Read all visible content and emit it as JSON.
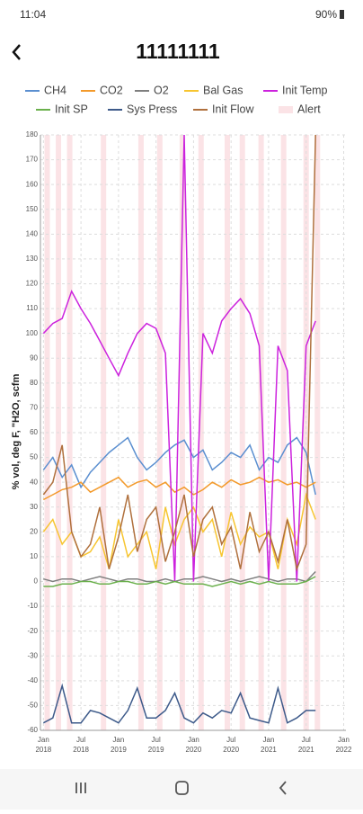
{
  "status": {
    "time": "11:04",
    "battery": "90%"
  },
  "header": {
    "title": "11111111"
  },
  "chart_data": {
    "type": "line",
    "y_label": "% vol, deg F, \"H2O, scfm",
    "x": [
      2018.0,
      2018.125,
      2018.25,
      2018.375,
      2018.5,
      2018.625,
      2018.75,
      2018.875,
      2019.0,
      2019.125,
      2019.25,
      2019.375,
      2019.5,
      2019.625,
      2019.75,
      2019.875,
      2020.0,
      2020.125,
      2020.25,
      2020.375,
      2020.5,
      2020.625,
      2020.75,
      2020.875,
      2021.0,
      2021.125,
      2021.25,
      2021.375,
      2021.5,
      2021.625
    ],
    "series": [
      {
        "name": "CH4",
        "color": "#5b8fd0",
        "values": [
          45,
          50,
          42,
          47,
          38,
          44,
          48,
          52,
          55,
          58,
          50,
          45,
          48,
          52,
          55,
          57,
          50,
          53,
          45,
          48,
          52,
          50,
          55,
          45,
          50,
          48,
          55,
          58,
          52,
          35
        ]
      },
      {
        "name": "CO2",
        "color": "#f39a2b",
        "values": [
          33,
          35,
          37,
          38,
          40,
          36,
          38,
          40,
          42,
          38,
          40,
          41,
          38,
          40,
          36,
          38,
          35,
          37,
          40,
          38,
          41,
          39,
          40,
          42,
          40,
          41,
          39,
          40,
          38,
          40
        ]
      },
      {
        "name": "O2",
        "color": "#7f7f7f",
        "values": [
          1,
          0,
          1,
          1,
          0,
          1,
          2,
          1,
          0,
          1,
          1,
          0,
          0,
          1,
          0,
          1,
          1,
          2,
          1,
          0,
          1,
          0,
          1,
          2,
          1,
          0,
          1,
          1,
          0,
          4
        ]
      },
      {
        "name": "Bal Gas",
        "color": "#f7c530",
        "values": [
          20,
          25,
          15,
          20,
          10,
          12,
          18,
          5,
          25,
          10,
          15,
          20,
          5,
          30,
          15,
          25,
          30,
          20,
          25,
          10,
          28,
          15,
          22,
          18,
          20,
          5,
          25,
          15,
          35,
          25
        ]
      },
      {
        "name": "Init Temp",
        "color": "#cc22dd",
        "values": [
          100,
          104,
          106,
          117,
          110,
          104,
          97,
          90,
          83,
          92,
          100,
          104,
          102,
          92,
          0,
          180,
          0,
          100,
          92,
          105,
          110,
          114,
          108,
          95,
          0,
          95,
          85,
          0,
          95,
          105
        ]
      },
      {
        "name": "Init SP",
        "color": "#6ab04c",
        "values": [
          -2,
          -2,
          -1,
          -1,
          0,
          0,
          -1,
          -1,
          0,
          0,
          -1,
          -1,
          0,
          -1,
          0,
          -1,
          -1,
          -1,
          -2,
          -1,
          0,
          -1,
          0,
          -1,
          0,
          -1,
          -1,
          -1,
          0,
          2
        ]
      },
      {
        "name": "Sys Press",
        "color": "#3d5a8a",
        "values": [
          -57,
          -55,
          -42,
          -57,
          -57,
          -52,
          -53,
          -55,
          -57,
          -52,
          -43,
          -55,
          -55,
          -52,
          -45,
          -55,
          -57,
          -53,
          -55,
          -52,
          -53,
          -45,
          -55,
          -56,
          -57,
          -43,
          -57,
          -55,
          -52,
          -52
        ]
      },
      {
        "name": "Init Flow",
        "color": "#b0703d",
        "values": [
          35,
          40,
          55,
          20,
          10,
          15,
          30,
          5,
          18,
          35,
          12,
          25,
          30,
          8,
          20,
          35,
          10,
          25,
          30,
          15,
          22,
          5,
          28,
          12,
          20,
          8,
          25,
          5,
          15,
          180
        ]
      },
      {
        "name": "Alert",
        "color": "#fbe3e6",
        "kind": "band",
        "x": [
          2018.05,
          2018.2,
          2018.35,
          2018.8,
          2019.3,
          2019.55,
          2019.85,
          2020.1,
          2020.45,
          2020.65,
          2020.9,
          2021.2,
          2021.5,
          2021.65
        ],
        "values": [
          180,
          180,
          180,
          180,
          180,
          180,
          180,
          180,
          180,
          180,
          180,
          180,
          180,
          180
        ]
      }
    ],
    "xlim": [
      2017.96,
      2022.03
    ],
    "xticks": [
      {
        "value": 2018,
        "label": "Jan 2018"
      },
      {
        "value": 2018.5,
        "label": "Jul 2018"
      },
      {
        "value": 2019,
        "label": "Jan 2019"
      },
      {
        "value": 2019.5,
        "label": "Jul 2019"
      },
      {
        "value": 2020,
        "label": "Jan 2020"
      },
      {
        "value": 2020.5,
        "label": "Jul 2020"
      },
      {
        "value": 2021,
        "label": "Jan 2021"
      },
      {
        "value": 2021.5,
        "label": "Jul 2021"
      },
      {
        "value": 2022,
        "label": "Jan 2022"
      }
    ],
    "ylim": [
      -60,
      180
    ],
    "yticks": [
      -60,
      -50,
      -40,
      -30,
      -20,
      -10,
      0,
      10,
      20,
      30,
      40,
      50,
      60,
      70,
      80,
      90,
      100,
      110,
      120,
      130,
      140,
      150,
      160,
      170,
      180
    ],
    "grid": true
  }
}
